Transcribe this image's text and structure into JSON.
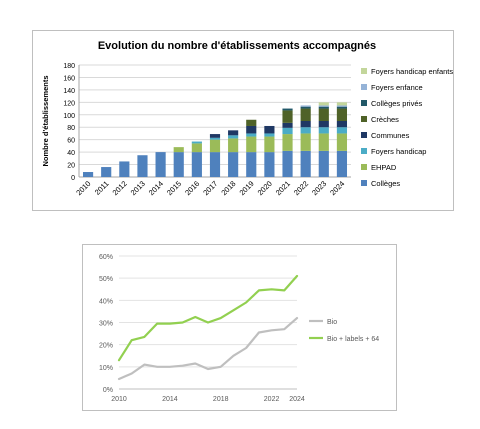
{
  "chart_data": [
    {
      "type": "bar",
      "stacked": true,
      "title": "Evolution du nombre d'établissements accompagnés",
      "ylabel": "Nombre d'établissements",
      "xlabel": "",
      "ylim": [
        0,
        180
      ],
      "yticks": [
        0,
        20,
        40,
        60,
        80,
        100,
        120,
        140,
        160,
        180
      ],
      "grid": true,
      "legend_position": "right",
      "categories": [
        "2010",
        "2011",
        "2012",
        "2013",
        "2014",
        "2015",
        "2016",
        "2017",
        "2018",
        "2019",
        "2020",
        "2021",
        "2022",
        "2023",
        "2024"
      ],
      "series": [
        {
          "name": "Collèges",
          "color": "#4f81bd",
          "values": [
            8,
            16,
            25,
            35,
            40,
            40,
            40,
            40,
            40,
            40,
            40,
            42,
            42,
            42,
            42
          ]
        },
        {
          "name": "EHPAD",
          "color": "#9bbb59",
          "values": [
            0,
            0,
            0,
            0,
            0,
            8,
            14,
            20,
            22,
            25,
            25,
            27,
            28,
            28,
            28
          ]
        },
        {
          "name": "Foyers handicap",
          "color": "#4bacc6",
          "values": [
            0,
            0,
            0,
            0,
            0,
            0,
            3,
            3,
            5,
            5,
            5,
            10,
            10,
            10,
            10
          ]
        },
        {
          "name": "Communes",
          "color": "#1f3864",
          "values": [
            0,
            0,
            0,
            0,
            0,
            0,
            0,
            6,
            8,
            12,
            12,
            8,
            10,
            10,
            10
          ]
        },
        {
          "name": "Crèches",
          "color": "#4f6228",
          "values": [
            0,
            0,
            0,
            0,
            0,
            0,
            0,
            0,
            0,
            10,
            0,
            20,
            20,
            20,
            20
          ]
        },
        {
          "name": "Collèges privés",
          "color": "#215868",
          "values": [
            0,
            0,
            0,
            0,
            0,
            0,
            0,
            0,
            0,
            0,
            0,
            3,
            3,
            3,
            3
          ]
        },
        {
          "name": "Foyers enfance",
          "color": "#95b3d7",
          "values": [
            0,
            0,
            0,
            0,
            0,
            0,
            0,
            0,
            0,
            0,
            0,
            0,
            2,
            2,
            2
          ]
        },
        {
          "name": "Foyers handicap enfants",
          "color": "#c3d69b",
          "values": [
            0,
            0,
            0,
            0,
            0,
            0,
            0,
            0,
            0,
            0,
            0,
            0,
            0,
            5,
            5
          ]
        }
      ]
    },
    {
      "type": "line",
      "title": "",
      "xlabel": "",
      "ylabel": "",
      "xlim": [
        2010,
        2024
      ],
      "xticks": [
        2010,
        2014,
        2018,
        2022,
        2024
      ],
      "ylim": [
        0,
        60
      ],
      "yticks": [
        0,
        10,
        20,
        30,
        40,
        50,
        60
      ],
      "ytick_suffix": "%",
      "grid": true,
      "legend_position": "right",
      "x": [
        2010,
        2011,
        2012,
        2013,
        2014,
        2015,
        2016,
        2017,
        2018,
        2019,
        2020,
        2021,
        2022,
        2023,
        2024
      ],
      "series": [
        {
          "name": "Bio",
          "color": "#bfbfbf",
          "values": [
            4.5,
            7,
            11,
            10,
            10,
            10.5,
            11.5,
            9,
            10,
            15,
            18.5,
            25.5,
            26.5,
            27,
            32
          ]
        },
        {
          "name": "Bio + labels + 64",
          "color": "#92d050",
          "values": [
            13,
            22,
            23.5,
            29.5,
            29.5,
            30,
            32.5,
            30,
            32,
            35.5,
            39,
            44.5,
            45,
            44.5,
            51
          ]
        }
      ]
    }
  ]
}
